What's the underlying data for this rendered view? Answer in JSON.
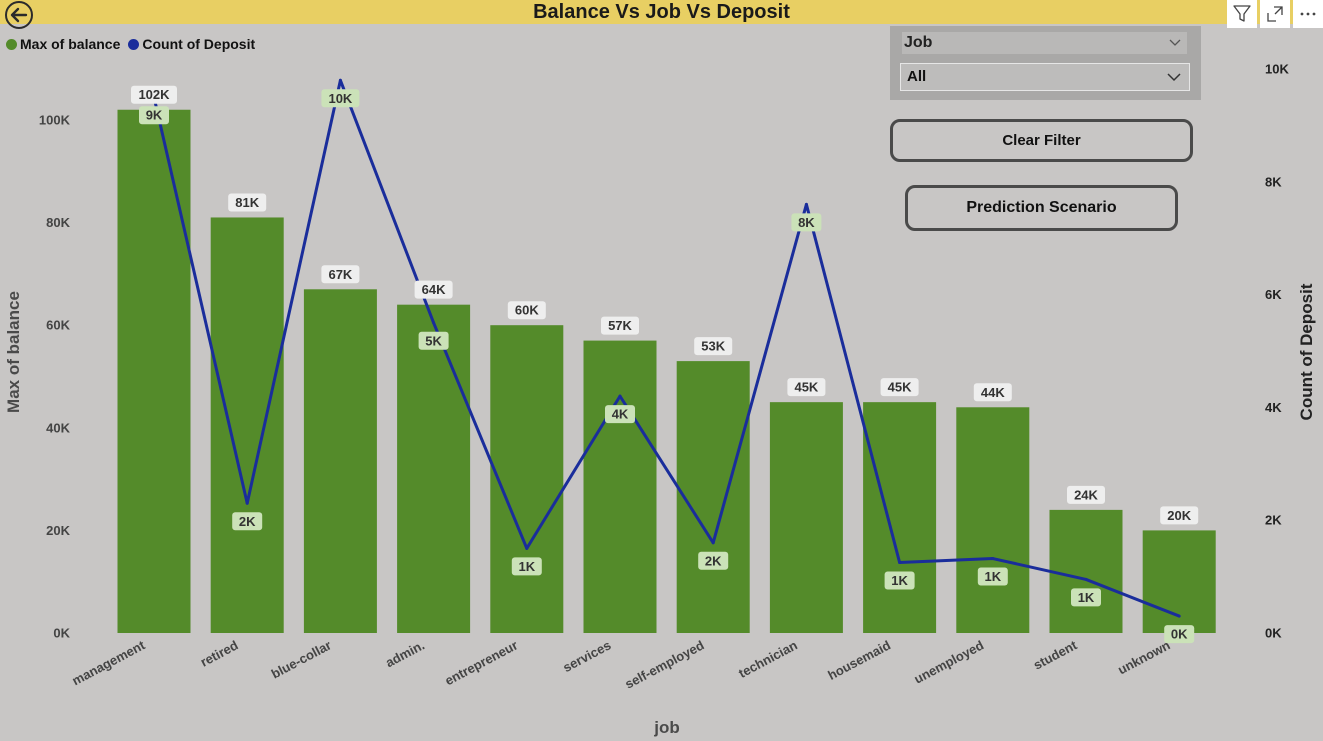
{
  "header": {
    "title": "Balance Vs Job Vs Deposit"
  },
  "legend": {
    "items": [
      {
        "label": "Max of balance",
        "color": "#548b2a"
      },
      {
        "label": "Count of Deposit",
        "color": "#1a2d9b"
      }
    ]
  },
  "slicer": {
    "title": "Job",
    "selected": "All"
  },
  "buttons": {
    "clear_filter": "Clear Filter",
    "prediction_scenario": "Prediction Scenario"
  },
  "icons": {
    "back": "back-arrow-icon",
    "filter": "filter-icon",
    "focus": "focus-mode-icon",
    "more": "more-options-icon"
  },
  "chart_data": {
    "type": "bar",
    "xlabel": "job",
    "ylabel": "Max of balance",
    "y2label": "Count of Deposit",
    "ylim": [
      0,
      102000
    ],
    "y2lim": [
      0,
      10000
    ],
    "yticks": [
      "0K",
      "20K",
      "40K",
      "60K",
      "80K",
      "100K"
    ],
    "y2ticks": [
      "0K",
      "2K",
      "4K",
      "6K",
      "8K",
      "10K"
    ],
    "categories": [
      "management",
      "retired",
      "blue-collar",
      "admin.",
      "entrepreneur",
      "services",
      "self-employed",
      "technician",
      "housemaid",
      "unemployed",
      "student",
      "unknown"
    ],
    "series": [
      {
        "name": "Max of balance",
        "type": "bar",
        "axis": "left",
        "color": "#548b2a",
        "values": [
          102000,
          81000,
          67000,
          64000,
          60000,
          57000,
          53000,
          45000,
          45000,
          44000,
          24000,
          20000
        ],
        "labels": [
          "102K",
          "81K",
          "67K",
          "64K",
          "60K",
          "57K",
          "53K",
          "45K",
          "45K",
          "44K",
          "24K",
          "20K"
        ]
      },
      {
        "name": "Count of Deposit",
        "type": "line",
        "axis": "right",
        "color": "#1a2d9b",
        "values": [
          9500,
          2300,
          9800,
          5500,
          1500,
          4200,
          1600,
          7600,
          1250,
          1320,
          950,
          300
        ],
        "labels": [
          "9K",
          "2K",
          "10K",
          "5K",
          "1K",
          "4K",
          "2K",
          "8K",
          "1K",
          "1K",
          "1K",
          "0K"
        ]
      }
    ],
    "legend": "top-left",
    "grid": false
  }
}
